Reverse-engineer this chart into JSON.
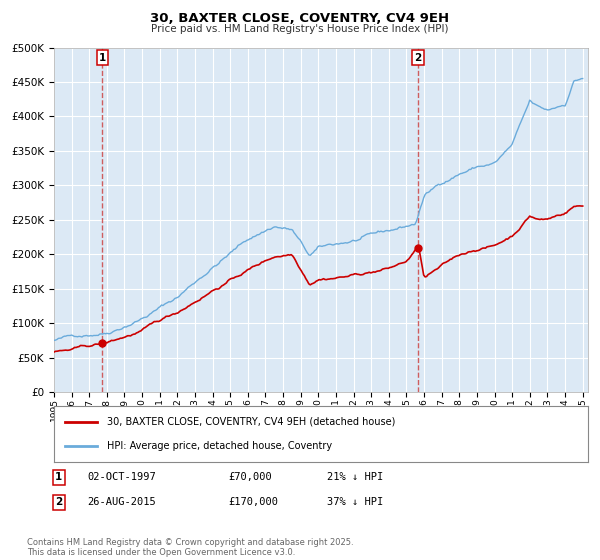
{
  "title": "30, BAXTER CLOSE, COVENTRY, CV4 9EH",
  "subtitle": "Price paid vs. HM Land Registry's House Price Index (HPI)",
  "hpi_label": "HPI: Average price, detached house, Coventry",
  "price_label": "30, BAXTER CLOSE, COVENTRY, CV4 9EH (detached house)",
  "sale1_date": "02-OCT-1997",
  "sale1_price": 70000,
  "sale1_pct": "21% ↓ HPI",
  "sale2_date": "26-AUG-2015",
  "sale2_price": 170000,
  "sale2_pct": "37% ↓ HPI",
  "sale1_x": 1997.75,
  "sale2_x": 2015.65,
  "ylim_max": 500000,
  "ylabel_ticks": [
    0,
    50000,
    100000,
    150000,
    200000,
    250000,
    300000,
    350000,
    400000,
    450000,
    500000
  ],
  "ylabel_labels": [
    "£0",
    "£50K",
    "£100K",
    "£150K",
    "£200K",
    "£250K",
    "£300K",
    "£350K",
    "£400K",
    "£450K",
    "£500K"
  ],
  "bg_color": "#dce9f5",
  "grid_color": "#ffffff",
  "hpi_color": "#6aabdb",
  "price_color": "#cc0000",
  "vline_color": "#cc4444",
  "footer": "Contains HM Land Registry data © Crown copyright and database right 2025.\nThis data is licensed under the Open Government Licence v3.0."
}
